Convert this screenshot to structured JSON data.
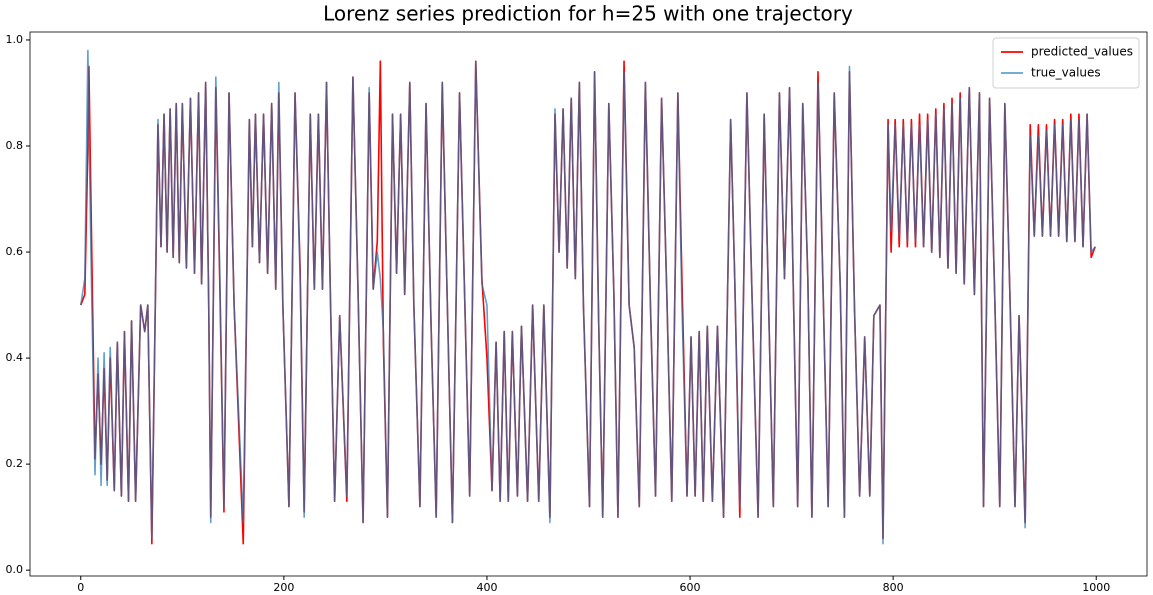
{
  "chart_data": {
    "type": "line",
    "title": "Lorenz series prediction for h=25 with one trajectory",
    "x": [
      0,
      4,
      7,
      8,
      10,
      14,
      17,
      20,
      23,
      26,
      29,
      33,
      36,
      40,
      43,
      47,
      50,
      54,
      59,
      63,
      66,
      70,
      76,
      79,
      82,
      85,
      88,
      91,
      94,
      97,
      100,
      104,
      108,
      112,
      116,
      119,
      123,
      126,
      128,
      133,
      137,
      141,
      146,
      151,
      160,
      166,
      169,
      172,
      176,
      180,
      184,
      188,
      192,
      195,
      199,
      205,
      211,
      216,
      220,
      226,
      230,
      234,
      238,
      242,
      246,
      250,
      255,
      262,
      268,
      273,
      278,
      284,
      288,
      292,
      295,
      298,
      302,
      307,
      311,
      315,
      319,
      324,
      328,
      334,
      340,
      345,
      350,
      356,
      361,
      366,
      373,
      378,
      383,
      389,
      395,
      400,
      405,
      409,
      413,
      417,
      421,
      425,
      430,
      434,
      440,
      445,
      451,
      456,
      462,
      467,
      471,
      475,
      479,
      483,
      487,
      491,
      495,
      501,
      506,
      510,
      514,
      520,
      525,
      529,
      535,
      540,
      545,
      550,
      556,
      561,
      566,
      572,
      577,
      582,
      588,
      592,
      597,
      601,
      605,
      609,
      613,
      617,
      622,
      627,
      633,
      640,
      644,
      649,
      656,
      661,
      667,
      673,
      677,
      682,
      688,
      693,
      698,
      702,
      706,
      711,
      716,
      720,
      726,
      731,
      736,
      742,
      748,
      752,
      757,
      762,
      767,
      772,
      777,
      781,
      787,
      790,
      795,
      798,
      802,
      806,
      810,
      814,
      818,
      822,
      826,
      830,
      834,
      838,
      842,
      846,
      850,
      854,
      858,
      862,
      866,
      870,
      875,
      880,
      885,
      889,
      895,
      900,
      905,
      910,
      915,
      920,
      924,
      930,
      935,
      939,
      943,
      947,
      951,
      955,
      959,
      963,
      967,
      971,
      975,
      979,
      983,
      987,
      991,
      995,
      999
    ],
    "series": [
      {
        "name": "predicted_values",
        "color": "#ff0000",
        "values": [
          0.5,
          0.52,
          0.8,
          0.95,
          0.7,
          0.21,
          0.37,
          0.2,
          0.38,
          0.17,
          0.4,
          0.15,
          0.43,
          0.14,
          0.45,
          0.13,
          0.47,
          0.13,
          0.5,
          0.45,
          0.5,
          0.05,
          0.84,
          0.61,
          0.86,
          0.6,
          0.87,
          0.59,
          0.88,
          0.58,
          0.88,
          0.57,
          0.89,
          0.56,
          0.9,
          0.54,
          0.92,
          0.5,
          0.1,
          0.91,
          0.53,
          0.11,
          0.9,
          0.5,
          0.05,
          0.85,
          0.61,
          0.86,
          0.58,
          0.86,
          0.56,
          0.88,
          0.53,
          0.9,
          0.5,
          0.12,
          0.9,
          0.57,
          0.11,
          0.86,
          0.53,
          0.86,
          0.53,
          0.92,
          0.5,
          0.13,
          0.48,
          0.13,
          0.93,
          0.53,
          0.09,
          0.9,
          0.53,
          0.62,
          0.96,
          0.43,
          0.1,
          0.86,
          0.56,
          0.86,
          0.52,
          0.92,
          0.5,
          0.12,
          0.88,
          0.46,
          0.1,
          0.92,
          0.5,
          0.09,
          0.9,
          0.52,
          0.14,
          0.96,
          0.55,
          0.4,
          0.15,
          0.43,
          0.13,
          0.45,
          0.13,
          0.45,
          0.14,
          0.46,
          0.13,
          0.5,
          0.13,
          0.5,
          0.1,
          0.86,
          0.6,
          0.87,
          0.57,
          0.89,
          0.55,
          0.92,
          0.5,
          0.12,
          0.94,
          0.47,
          0.1,
          0.88,
          0.52,
          0.1,
          0.96,
          0.5,
          0.42,
          0.12,
          0.92,
          0.5,
          0.14,
          0.89,
          0.53,
          0.13,
          0.9,
          0.55,
          0.14,
          0.44,
          0.14,
          0.45,
          0.13,
          0.46,
          0.13,
          0.46,
          0.1,
          0.85,
          0.55,
          0.1,
          0.9,
          0.52,
          0.1,
          0.86,
          0.53,
          0.12,
          0.9,
          0.55,
          0.91,
          0.5,
          0.12,
          0.88,
          0.55,
          0.1,
          0.94,
          0.53,
          0.12,
          0.9,
          0.53,
          0.1,
          0.94,
          0.49,
          0.14,
          0.44,
          0.14,
          0.48,
          0.5,
          0.06,
          0.85,
          0.6,
          0.85,
          0.61,
          0.85,
          0.61,
          0.85,
          0.61,
          0.86,
          0.61,
          0.86,
          0.6,
          0.87,
          0.59,
          0.88,
          0.57,
          0.89,
          0.56,
          0.9,
          0.54,
          0.91,
          0.52,
          0.9,
          0.12,
          0.89,
          0.52,
          0.12,
          0.88,
          0.52,
          0.12,
          0.48,
          0.09,
          0.84,
          0.63,
          0.84,
          0.63,
          0.84,
          0.63,
          0.85,
          0.63,
          0.85,
          0.62,
          0.86,
          0.62,
          0.86,
          0.61,
          0.86,
          0.59,
          0.61
        ]
      },
      {
        "name": "true_values",
        "color": "#1f77b4",
        "values": [
          0.5,
          0.55,
          0.98,
          0.85,
          0.6,
          0.18,
          0.4,
          0.16,
          0.41,
          0.16,
          0.42,
          0.15,
          0.43,
          0.14,
          0.45,
          0.13,
          0.47,
          0.13,
          0.5,
          0.45,
          0.5,
          0.06,
          0.85,
          0.61,
          0.86,
          0.6,
          0.87,
          0.59,
          0.88,
          0.58,
          0.88,
          0.57,
          0.89,
          0.56,
          0.9,
          0.54,
          0.92,
          0.5,
          0.09,
          0.93,
          0.55,
          0.12,
          0.9,
          0.5,
          0.09,
          0.85,
          0.61,
          0.86,
          0.58,
          0.86,
          0.56,
          0.88,
          0.53,
          0.92,
          0.5,
          0.12,
          0.9,
          0.55,
          0.1,
          0.86,
          0.53,
          0.86,
          0.53,
          0.92,
          0.5,
          0.13,
          0.48,
          0.14,
          0.93,
          0.53,
          0.09,
          0.91,
          0.53,
          0.6,
          0.55,
          0.45,
          0.1,
          0.86,
          0.56,
          0.86,
          0.52,
          0.92,
          0.5,
          0.12,
          0.88,
          0.46,
          0.1,
          0.92,
          0.5,
          0.09,
          0.9,
          0.52,
          0.14,
          0.96,
          0.54,
          0.5,
          0.15,
          0.43,
          0.13,
          0.45,
          0.13,
          0.45,
          0.14,
          0.46,
          0.13,
          0.5,
          0.13,
          0.5,
          0.09,
          0.87,
          0.6,
          0.87,
          0.57,
          0.89,
          0.55,
          0.92,
          0.5,
          0.12,
          0.94,
          0.47,
          0.1,
          0.88,
          0.52,
          0.1,
          0.94,
          0.5,
          0.42,
          0.12,
          0.92,
          0.5,
          0.14,
          0.89,
          0.53,
          0.13,
          0.9,
          0.5,
          0.14,
          0.44,
          0.14,
          0.45,
          0.13,
          0.46,
          0.13,
          0.46,
          0.1,
          0.85,
          0.55,
          0.12,
          0.9,
          0.52,
          0.1,
          0.86,
          0.53,
          0.12,
          0.9,
          0.55,
          0.91,
          0.5,
          0.12,
          0.88,
          0.55,
          0.1,
          0.92,
          0.53,
          0.12,
          0.9,
          0.53,
          0.1,
          0.95,
          0.49,
          0.14,
          0.44,
          0.14,
          0.48,
          0.5,
          0.05,
          0.84,
          0.64,
          0.84,
          0.63,
          0.84,
          0.62,
          0.84,
          0.62,
          0.84,
          0.61,
          0.85,
          0.6,
          0.86,
          0.59,
          0.87,
          0.57,
          0.88,
          0.56,
          0.89,
          0.54,
          0.91,
          0.52,
          0.9,
          0.12,
          0.89,
          0.52,
          0.12,
          0.88,
          0.52,
          0.12,
          0.48,
          0.08,
          0.82,
          0.63,
          0.82,
          0.63,
          0.83,
          0.63,
          0.84,
          0.63,
          0.84,
          0.62,
          0.85,
          0.62,
          0.85,
          0.61,
          0.86,
          0.6,
          0.61
        ]
      }
    ],
    "xlim": [
      -50,
      1050
    ],
    "xticks": [
      0,
      200,
      400,
      600,
      800,
      1000
    ],
    "ylim": [
      -0.011,
      1.015
    ],
    "yticks": [
      {
        "value": 0,
        "label": "0.0"
      },
      0.2,
      0.4,
      0.6,
      0.8,
      {
        "value": 1,
        "label": "1.0"
      }
    ],
    "legend": "upper right"
  }
}
